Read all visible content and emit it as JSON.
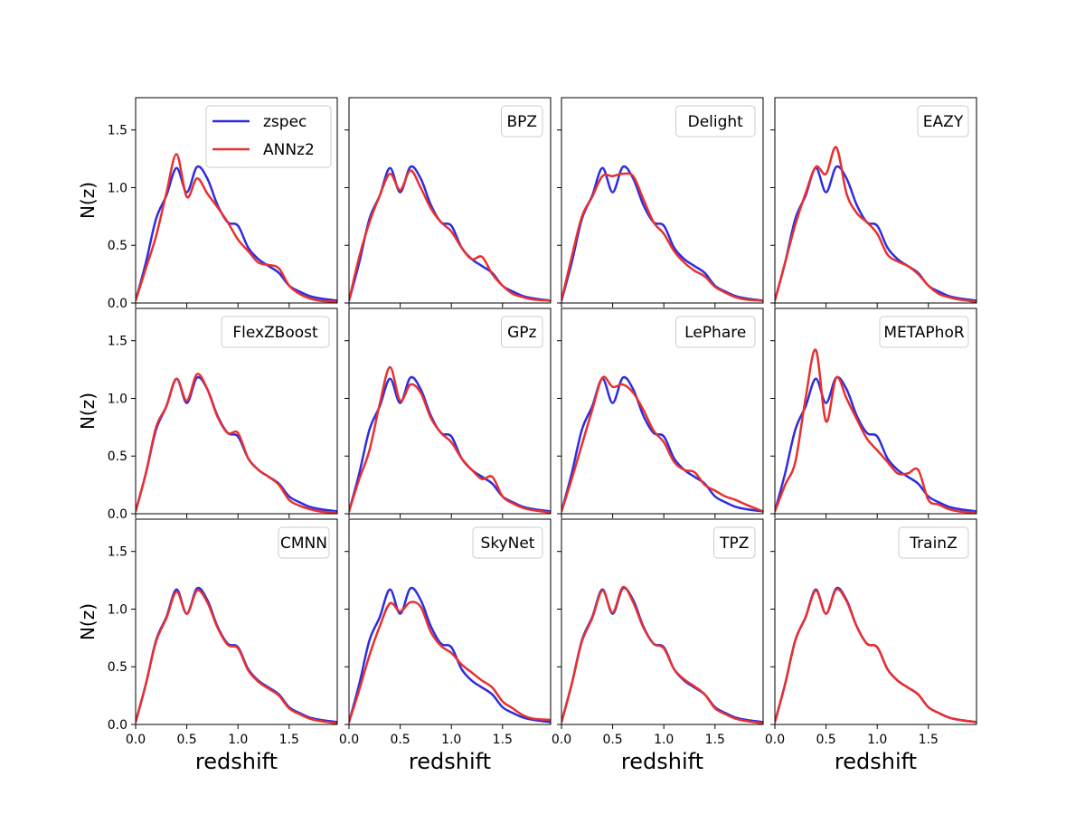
{
  "chart_data": {
    "type": "line",
    "layout": {
      "rows": 3,
      "cols": 4
    },
    "xlim": [
      0.0,
      1.97
    ],
    "ylim": [
      0.0,
      1.78
    ],
    "xticks": [
      "0.0",
      "0.5",
      "1.0",
      "1.5"
    ],
    "yticks": [
      "0.0",
      "0.5",
      "1.0",
      "1.5"
    ],
    "xlabel": "redshift",
    "ylabel": "N(z)",
    "legend": {
      "location": "upper-right of first panel",
      "entries": [
        "zspec",
        "ANNz2"
      ]
    },
    "series_colors": {
      "zspec": "#2d2de0",
      "method": "#e83030"
    },
    "x": [
      0.0,
      0.1,
      0.2,
      0.3,
      0.4,
      0.5,
      0.6,
      0.7,
      0.8,
      0.9,
      1.0,
      1.1,
      1.2,
      1.3,
      1.4,
      1.5,
      1.6,
      1.7,
      1.8,
      1.97
    ],
    "zspec": [
      0.02,
      0.35,
      0.73,
      0.93,
      1.17,
      0.96,
      1.18,
      1.08,
      0.85,
      0.7,
      0.67,
      0.48,
      0.38,
      0.32,
      0.26,
      0.15,
      0.1,
      0.06,
      0.04,
      0.02
    ],
    "panels": [
      {
        "label": "ANNz2",
        "method_values": [
          0.02,
          0.3,
          0.58,
          0.95,
          1.29,
          0.92,
          1.08,
          0.95,
          0.83,
          0.7,
          0.55,
          0.45,
          0.35,
          0.33,
          0.3,
          0.15,
          0.08,
          0.04,
          0.02,
          0.01
        ]
      },
      {
        "label": "BPZ",
        "method_values": [
          0.02,
          0.4,
          0.7,
          0.93,
          1.12,
          0.98,
          1.15,
          1.0,
          0.82,
          0.7,
          0.62,
          0.48,
          0.38,
          0.4,
          0.25,
          0.15,
          0.08,
          0.05,
          0.03,
          0.02
        ]
      },
      {
        "label": "Delight",
        "method_values": [
          0.02,
          0.4,
          0.75,
          0.92,
          1.1,
          1.1,
          1.12,
          1.1,
          0.9,
          0.7,
          0.6,
          0.45,
          0.35,
          0.28,
          0.23,
          0.14,
          0.09,
          0.05,
          0.03,
          0.02
        ]
      },
      {
        "label": "EAZY",
        "method_values": [
          0.02,
          0.35,
          0.68,
          0.95,
          1.18,
          1.12,
          1.35,
          0.95,
          0.78,
          0.7,
          0.6,
          0.42,
          0.36,
          0.32,
          0.25,
          0.15,
          0.08,
          0.05,
          0.03,
          0.01
        ]
      },
      {
        "label": "FlexZBoost",
        "method_values": [
          0.02,
          0.35,
          0.75,
          0.93,
          1.17,
          0.98,
          1.21,
          1.08,
          0.84,
          0.7,
          0.7,
          0.48,
          0.38,
          0.32,
          0.25,
          0.12,
          0.07,
          0.04,
          0.02,
          0.01
        ]
      },
      {
        "label": "GPz",
        "method_values": [
          0.02,
          0.3,
          0.55,
          0.95,
          1.27,
          0.98,
          1.12,
          1.05,
          0.83,
          0.7,
          0.62,
          0.48,
          0.38,
          0.3,
          0.32,
          0.15,
          0.09,
          0.05,
          0.03,
          0.01
        ]
      },
      {
        "label": "LePhare",
        "method_values": [
          0.02,
          0.3,
          0.6,
          0.9,
          1.18,
          1.1,
          1.12,
          1.05,
          0.9,
          0.72,
          0.62,
          0.45,
          0.38,
          0.36,
          0.25,
          0.2,
          0.15,
          0.12,
          0.08,
          0.02
        ]
      },
      {
        "label": "METAPhoR",
        "method_values": [
          0.02,
          0.25,
          0.45,
          1.0,
          1.42,
          0.8,
          1.18,
          1.0,
          0.82,
          0.65,
          0.55,
          0.45,
          0.35,
          0.35,
          0.38,
          0.12,
          0.08,
          0.04,
          0.02,
          0.01
        ]
      },
      {
        "label": "CMNN",
        "method_values": [
          0.02,
          0.35,
          0.72,
          0.92,
          1.15,
          0.96,
          1.16,
          1.06,
          0.84,
          0.69,
          0.66,
          0.47,
          0.37,
          0.31,
          0.25,
          0.14,
          0.09,
          0.05,
          0.03,
          0.01
        ]
      },
      {
        "label": "SkyNet",
        "method_values": [
          0.02,
          0.3,
          0.6,
          0.85,
          1.05,
          0.98,
          1.06,
          1.02,
          0.8,
          0.68,
          0.62,
          0.52,
          0.45,
          0.38,
          0.32,
          0.2,
          0.14,
          0.08,
          0.05,
          0.04
        ]
      },
      {
        "label": "TPZ",
        "method_values": [
          0.02,
          0.35,
          0.72,
          0.92,
          1.16,
          0.97,
          1.19,
          1.06,
          0.84,
          0.7,
          0.66,
          0.48,
          0.39,
          0.33,
          0.26,
          0.14,
          0.09,
          0.05,
          0.03,
          0.01
        ]
      },
      {
        "label": "TrainZ",
        "method_values": [
          0.02,
          0.35,
          0.73,
          0.93,
          1.16,
          0.96,
          1.17,
          1.07,
          0.85,
          0.7,
          0.67,
          0.48,
          0.38,
          0.32,
          0.26,
          0.15,
          0.1,
          0.06,
          0.04,
          0.02
        ]
      }
    ]
  }
}
